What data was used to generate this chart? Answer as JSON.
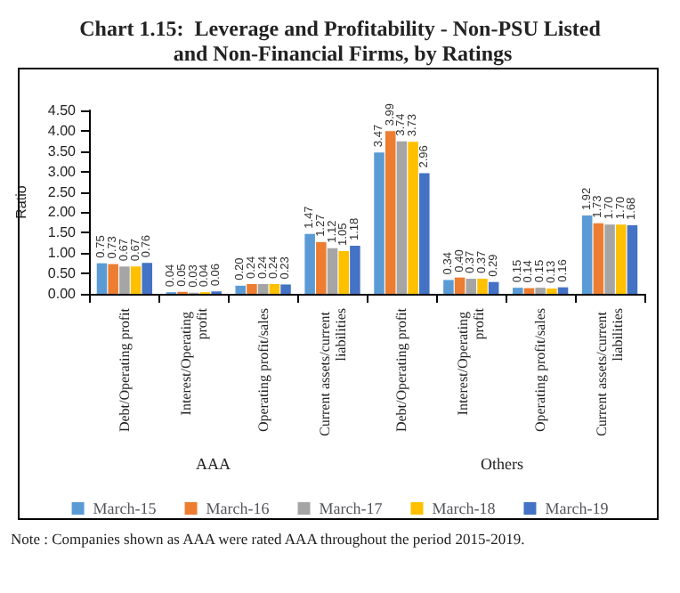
{
  "chart_data": {
    "type": "bar",
    "title": "Chart 1.15:  Leverage and Profitability - Non-PSU Listed and Non-Financial Firms, by Ratings",
    "ylabel": "Ratio",
    "categories": [
      "Debt/Operating profit",
      "Interest/Operating profit",
      "Operating profit/sales",
      "Current assets/current liabilities",
      "Debt/Operating profit",
      "Interest/Operating profit",
      "Operating profit/sales",
      "Current assets/current liabilities"
    ],
    "series": [
      {
        "name": "March-15",
        "color": "#5b9bd5",
        "values": [
          0.75,
          0.04,
          0.2,
          1.47,
          3.47,
          0.34,
          0.15,
          1.92
        ],
        "value_labels": [
          "0.75",
          "0.04",
          "0.20",
          "1.47",
          "3.47",
          "0.34",
          "0.15",
          "1.92"
        ]
      },
      {
        "name": "March-16",
        "color": "#ed7d31",
        "values": [
          0.73,
          0.05,
          0.24,
          1.27,
          3.99,
          0.4,
          0.14,
          1.73
        ],
        "value_labels": [
          "0.73",
          "0.05",
          "0.24",
          "1.27",
          "3.99",
          "0.40",
          "0.14",
          "1.73"
        ]
      },
      {
        "name": "March-17",
        "color": "#a5a5a5",
        "values": [
          0.67,
          0.03,
          0.24,
          1.12,
          3.74,
          0.37,
          0.15,
          1.7
        ],
        "value_labels": [
          "0.67",
          "0.03",
          "0.24",
          "1.12",
          "3.74",
          "0.37",
          "0.15",
          "1.70"
        ]
      },
      {
        "name": "March-18",
        "color": "#ffc000",
        "values": [
          0.67,
          0.04,
          0.24,
          1.05,
          3.73,
          0.37,
          0.13,
          1.7
        ],
        "value_labels": [
          "0.67",
          "0.04",
          "0.24",
          "1.05",
          "3.73",
          "0.37",
          "0.13",
          "1.70"
        ]
      },
      {
        "name": "March-19",
        "color": "#4472c4",
        "values": [
          0.76,
          0.06,
          0.23,
          1.18,
          2.96,
          0.29,
          0.16,
          1.68
        ],
        "value_labels": [
          "0.76",
          "0.06",
          "0.23",
          "1.18",
          "2.96",
          "0.29",
          "0.16",
          "1.68"
        ]
      }
    ],
    "ylim": [
      0,
      4.5
    ],
    "yticks": [
      {
        "value": 0,
        "label": "0.00"
      },
      {
        "value": 0.5,
        "label": "0.50"
      },
      {
        "value": 1,
        "label": "1.00"
      },
      {
        "value": 1.5,
        "label": "1.50"
      },
      {
        "value": 2,
        "label": "2.00"
      },
      {
        "value": 2.5,
        "label": "2.50"
      },
      {
        "value": 3,
        "label": "3.00"
      },
      {
        "value": 3.5,
        "label": "3.50"
      },
      {
        "value": 4,
        "label": "4.00"
      },
      {
        "value": 4.5,
        "label": "4.50"
      }
    ],
    "grid": false,
    "legend": "bottom",
    "annotations": [
      "AAA",
      "Others",
      "Note : Companies shown as AAA were rated AAA throughout the period 2015-2019."
    ]
  }
}
